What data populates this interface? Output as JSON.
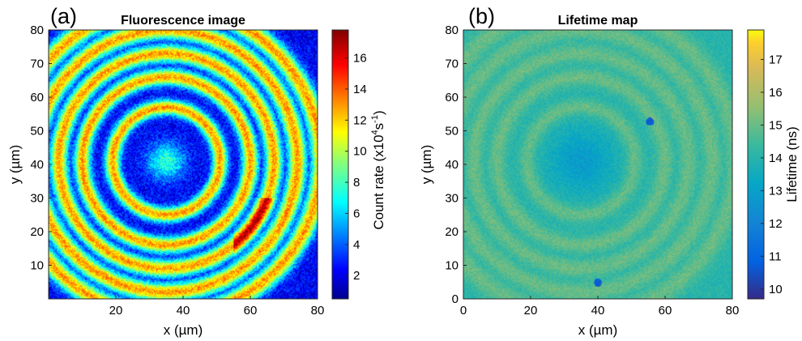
{
  "chart_data": [
    {
      "type": "heatmap",
      "panel_label": "(a)",
      "title": "Fluorescence image",
      "xlabel": "x (µm)",
      "ylabel": "y (µm)",
      "xlim": [
        0,
        80
      ],
      "ylim": [
        0,
        80
      ],
      "xticks": [
        "20",
        "40",
        "60",
        "80"
      ],
      "yticks": [
        "10",
        "20",
        "30",
        "40",
        "50",
        "60",
        "70",
        "80"
      ],
      "colorbar": {
        "label": "Count rate (x10",
        "label_sup": "4",
        "label_after": "s",
        "label_sup2": "-1",
        "label_end": ")",
        "colormap": "jet",
        "range": [
          0.5,
          17.8
        ],
        "ticks": [
          "2",
          "4",
          "6",
          "8",
          "10",
          "12",
          "14",
          "16"
        ]
      },
      "pattern": {
        "description": "concentric fluorescence rings",
        "center": [
          35,
          41
        ],
        "ring_radii": [
          16,
          25,
          32,
          39,
          46
        ],
        "center_value": 8,
        "background_value": 2.5,
        "ring_value": 13
      }
    },
    {
      "type": "heatmap",
      "panel_label": "(b)",
      "title": "Lifetime map",
      "xlabel": "x (µm)",
      "ylabel": "y (µm)",
      "xlim": [
        0,
        80
      ],
      "ylim": [
        0,
        80
      ],
      "xticks": [
        "0",
        "20",
        "40",
        "60",
        "80"
      ],
      "yticks": [
        "0",
        "10",
        "20",
        "30",
        "40",
        "50",
        "60",
        "70",
        "80"
      ],
      "colorbar": {
        "label": "Lifetime (ns)",
        "colormap": "parula",
        "range": [
          9.7,
          17.9
        ],
        "ticks": [
          "10",
          "11",
          "12",
          "13",
          "14",
          "15",
          "16",
          "17"
        ]
      },
      "pattern": {
        "description": "concentric lifetime rings",
        "center": [
          35,
          41
        ],
        "ring_radii": [
          16,
          25,
          32,
          39,
          46
        ],
        "center_value": 12.8,
        "background_value": 14.0,
        "ring_value": 15.0
      }
    }
  ]
}
